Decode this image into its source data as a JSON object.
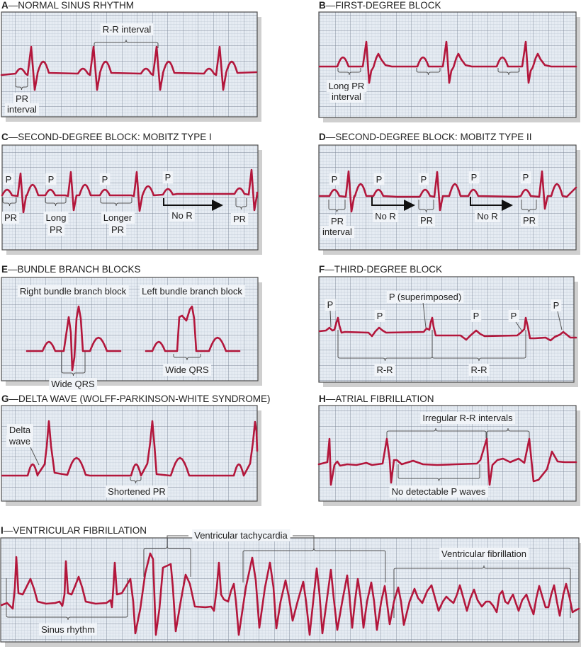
{
  "colors": {
    "trace": "#b3173c",
    "grid_bg": "#e6ecf3",
    "grid_minor": "#bcc6d2",
    "grid_major": "#7e8998"
  },
  "panels": {
    "a": {
      "letter": "A",
      "title": "—NORMAL SINUS RHYTHM",
      "rr": "R-R interval",
      "pr_1": "PR",
      "pr_2": "interval"
    },
    "b": {
      "letter": "B",
      "title": "—FIRST-DEGREE BLOCK",
      "pr_1": "Long PR",
      "pr_2": "interval"
    },
    "c": {
      "letter": "C",
      "title": "—SECOND-DEGREE BLOCK: MOBITZ TYPE I",
      "p": "P",
      "pr": "PR",
      "long": "Long",
      "longer": "Longer",
      "no_r": "No R"
    },
    "d": {
      "letter": "D",
      "title": "—SECOND-DEGREE BLOCK: MOBITZ TYPE II",
      "p": "P",
      "pr": "PR",
      "interval": "interval",
      "no_r": "No R"
    },
    "e": {
      "letter": "E",
      "title": "—BUNDLE BRANCH BLOCKS",
      "rbbb": "Right bundle branch block",
      "lbbb": "Left bundle branch block",
      "wide_qrs": "Wide QRS"
    },
    "f": {
      "letter": "F",
      "title": "—THIRD-DEGREE BLOCK",
      "p": "P",
      "p_super": "P (superimposed)",
      "rr": "R-R"
    },
    "g": {
      "letter": "G",
      "title": "—DELTA WAVE (WOLFF-PARKINSON-WHITE SYNDROME)",
      "delta_1": "Delta",
      "delta_2": "wave",
      "short_pr": "Shortened PR"
    },
    "h": {
      "letter": "H",
      "title": "—ATRIAL FIBRILLATION",
      "irregular": "Irregular R-R intervals",
      "no_p": "No detectable P waves"
    },
    "i": {
      "letter": "I",
      "title": "—VENTRICULAR FIBRILLATION",
      "vt": "Ventricular tachycardia",
      "vf": "Ventricular fibrillation",
      "sinus": "Sinus rhythm"
    }
  }
}
